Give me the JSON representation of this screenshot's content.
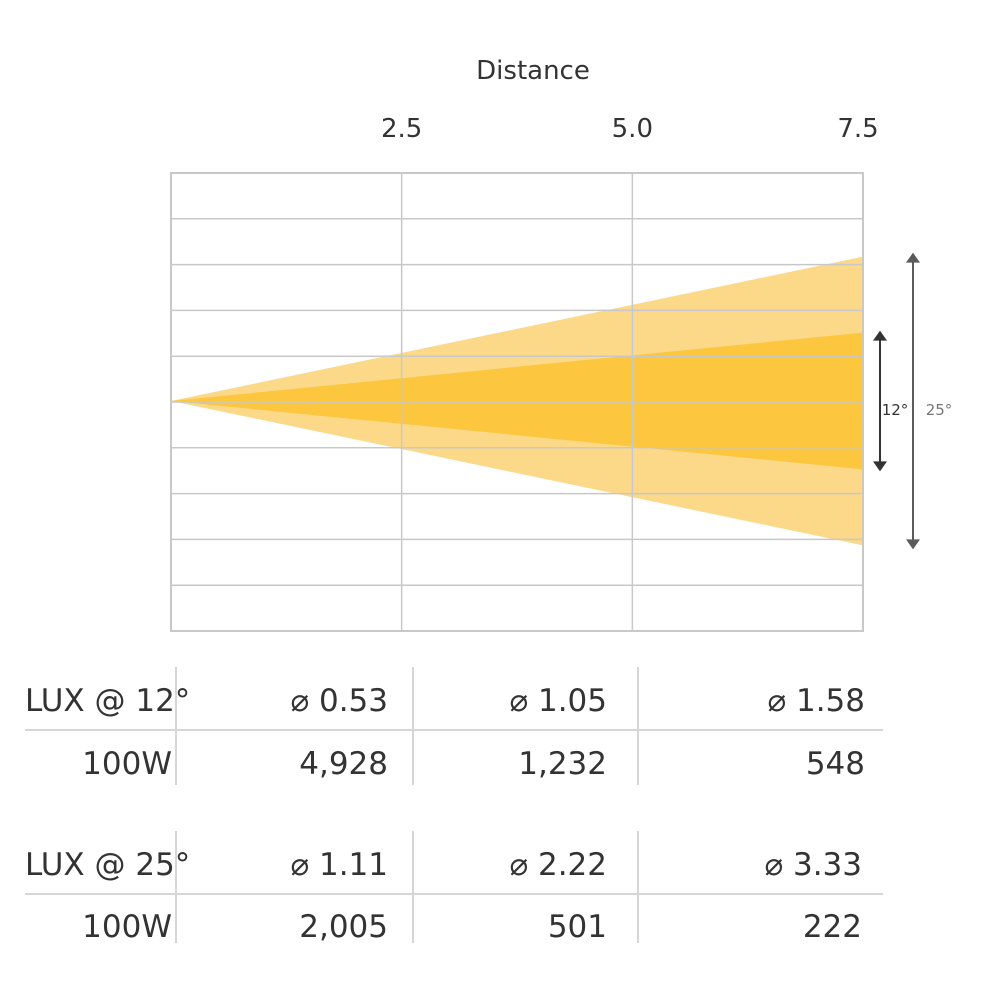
{
  "chart_data": {
    "type": "area",
    "title": "",
    "xlabel": "Distance",
    "x_ticks": [
      "2.5",
      "5.0",
      "7.5"
    ],
    "xlim": [
      0,
      7.5
    ],
    "grid": true,
    "series": [
      {
        "name": "25°",
        "beam_angle_deg": 25,
        "color": "#fbd989"
      },
      {
        "name": "12°",
        "beam_angle_deg": 12,
        "color": "#fcc63f"
      }
    ],
    "annotations": [
      "12°",
      "25°"
    ]
  },
  "tables": [
    {
      "label": "LUX @ 12°",
      "power": "100W",
      "diameters": [
        "⌀ 0.53",
        "⌀ 1.05",
        "⌀ 1.58"
      ],
      "lux": [
        "4,928",
        "1,232",
        "548"
      ]
    },
    {
      "label": "LUX @ 25°",
      "power": "100W",
      "diameters": [
        "⌀ 1.11",
        "⌀ 2.22",
        "⌀ 3.33"
      ],
      "lux": [
        "2,005",
        "501",
        "222"
      ]
    }
  ],
  "colors": {
    "grid": "#c8c8c8",
    "arrow": "#333333",
    "arrow_outer": "#5a5a5a",
    "text": "#333333",
    "text_muted": "#777777"
  }
}
